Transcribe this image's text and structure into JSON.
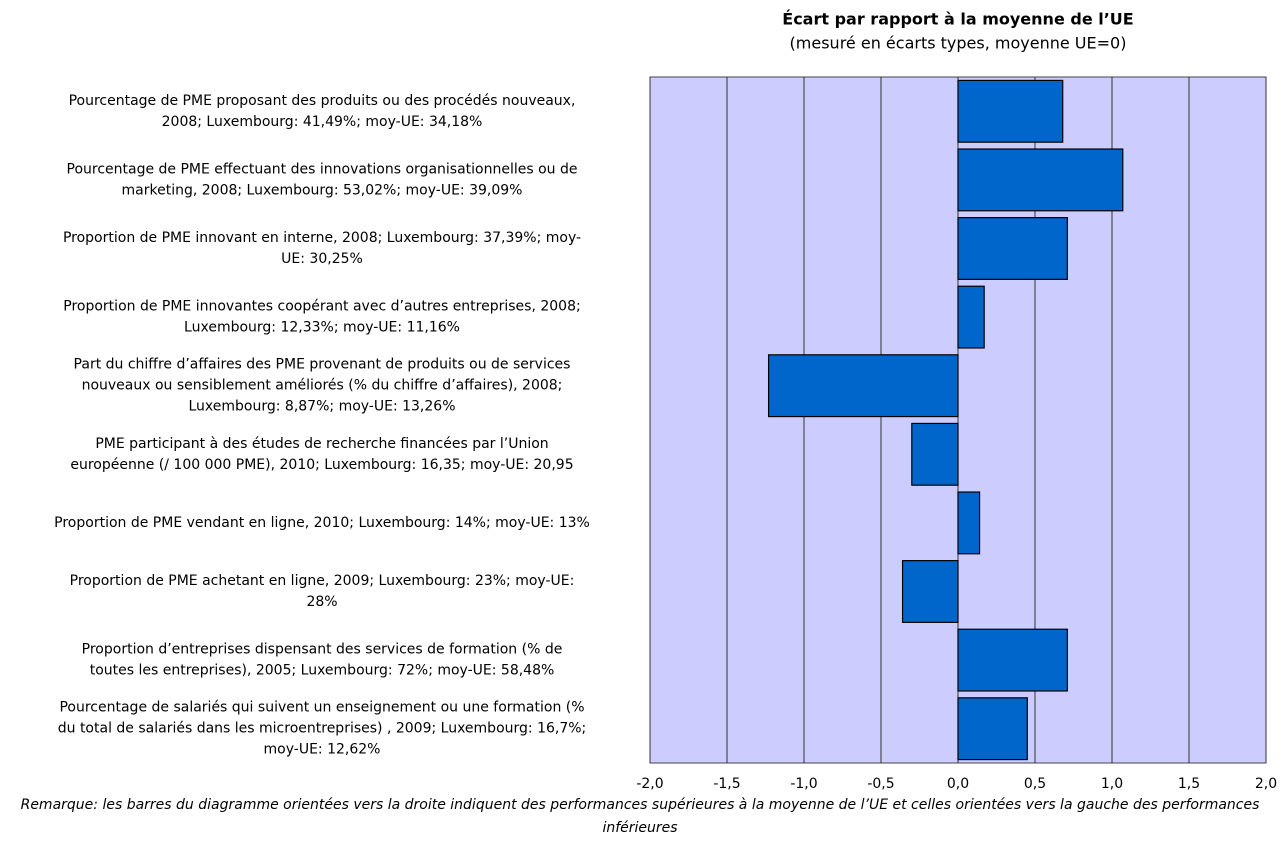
{
  "chart_data": {
    "type": "bar",
    "orientation": "horizontal",
    "title": "Écart par rapport à la moyenne de l’UE",
    "subtitle": "(mesuré en écarts types, moyenne UE=0)",
    "categories": [
      [
        "Pourcentage de PME proposant des produits ou des procédés nouveaux,",
        "2008; Luxembourg: 41,49%; moy-UE: 34,18%"
      ],
      [
        "Pourcentage de PME effectuant des innovations organisationnelles ou de",
        "marketing, 2008; Luxembourg: 53,02%; moy-UE: 39,09%"
      ],
      [
        "Proportion de PME innovant en interne, 2008; Luxembourg: 37,39%; moy-",
        "UE: 30,25%"
      ],
      [
        "Proportion de PME innovantes coopérant avec d’autres entreprises, 2008;",
        "Luxembourg: 12,33%; moy-UE: 11,16%"
      ],
      [
        "Part du chiffre d’affaires des PME provenant de produits ou de services",
        "nouveaux ou sensiblement améliorés (% du chiffre d’affaires), 2008;",
        "Luxembourg: 8,87%; moy-UE: 13,26%"
      ],
      [
        "PME participant à des études de recherche financées par l’Union",
        "européenne (/ 100 000 PME), 2010; Luxembourg: 16,35; moy-UE: 20,95"
      ],
      [
        "Proportion de PME vendant en ligne, 2010; Luxembourg: 14%; moy-UE: 13%"
      ],
      [
        "Proportion de PME achetant en ligne, 2009; Luxembourg: 23%; moy-UE:",
        "28%"
      ],
      [
        "Proportion d’entreprises dispensant des services de formation (% de",
        "toutes les entreprises), 2005; Luxembourg: 72%; moy-UE: 58,48%"
      ],
      [
        "Pourcentage de salariés qui suivent un enseignement ou une formation (%",
        "du total de salariés dans les microentreprises) , 2009; Luxembourg: 16,7%;",
        "moy-UE: 12,62%"
      ]
    ],
    "values": [
      0.68,
      1.07,
      0.71,
      0.17,
      -1.23,
      -0.3,
      0.14,
      -0.36,
      0.71,
      0.45
    ],
    "color": "#0066cc",
    "plot_background": "#ccccff",
    "xlim": [
      -2,
      2
    ],
    "xticks": [
      {
        "value": -2,
        "label": "-2,0"
      },
      {
        "value": -1.5,
        "label": "-1,5"
      },
      {
        "value": -1,
        "label": "-1,0"
      },
      {
        "value": -0.5,
        "label": "-0,5"
      },
      {
        "value": 0,
        "label": "0,0"
      },
      {
        "value": 0.5,
        "label": "0,5"
      },
      {
        "value": 1,
        "label": "1,0"
      },
      {
        "value": 1.5,
        "label": "1,5"
      },
      {
        "value": 2,
        "label": "2,0"
      }
    ],
    "grid": true,
    "note": "Remarque: les barres du diagramme orientées vers la droite indiquent des performances supérieures à la moyenne de l’UE et celles orientées vers la gauche des performances inférieures"
  }
}
